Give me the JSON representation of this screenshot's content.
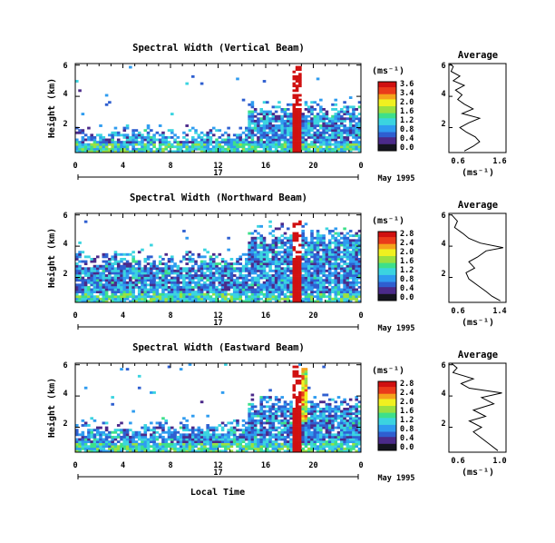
{
  "chart_data": [
    {
      "type": "heatmap",
      "title": "Spectral Width (Vertical Beam)",
      "ylabel": "Height (km)",
      "xticks": [
        "0",
        "4",
        "8",
        "12",
        "16",
        "20",
        "0"
      ],
      "yticks": [
        "2",
        "4",
        "6"
      ],
      "xlim": [
        0,
        24
      ],
      "ylim": [
        0.4,
        6.1
      ],
      "date_label": "17",
      "date_right": "May 1995",
      "colorbar": {
        "unit": "(ms⁻¹)",
        "ticks": [
          "3.6",
          "3.4",
          "2.0",
          "1.6",
          "1.2",
          "0.8",
          "0.4",
          "0.0"
        ]
      },
      "average": {
        "title": "Average",
        "xticks": [
          "0.6",
          "1.6"
        ],
        "xlim": [
          0.4,
          1.7
        ],
        "xlabel": "(ms⁻¹)",
        "yticks": [
          "2",
          "4",
          "6"
        ],
        "profile": [
          [
            0.75,
            0.5
          ],
          [
            0.95,
            0.8
          ],
          [
            1.1,
            1.1
          ],
          [
            1.0,
            1.4
          ],
          [
            0.8,
            1.7
          ],
          [
            0.65,
            2.0
          ],
          [
            0.85,
            2.3
          ],
          [
            1.1,
            2.6
          ],
          [
            0.7,
            2.9
          ],
          [
            0.95,
            3.2
          ],
          [
            0.75,
            3.5
          ],
          [
            0.6,
            3.8
          ],
          [
            0.7,
            4.1
          ],
          [
            0.55,
            4.4
          ],
          [
            0.75,
            4.7
          ],
          [
            0.5,
            5.0
          ],
          [
            0.65,
            5.3
          ],
          [
            0.45,
            5.6
          ],
          [
            0.5,
            5.9
          ],
          [
            0.42,
            6.1
          ]
        ]
      }
    },
    {
      "type": "heatmap",
      "title": "Spectral Width (Northward Beam)",
      "ylabel": "Height (km)",
      "xticks": [
        "0",
        "4",
        "8",
        "12",
        "16",
        "20",
        "0"
      ],
      "yticks": [
        "2",
        "4",
        "6"
      ],
      "xlim": [
        0,
        24
      ],
      "ylim": [
        0.4,
        6.1
      ],
      "date_label": "17",
      "date_right": "May 1995",
      "colorbar": {
        "unit": "(ms⁻¹)",
        "ticks": [
          "2.8",
          "2.4",
          "2.0",
          "1.6",
          "1.2",
          "0.8",
          "0.4",
          "0.0"
        ]
      },
      "average": {
        "title": "Average",
        "xticks": [
          "0.6",
          "1.4"
        ],
        "xlim": [
          0.45,
          1.45
        ],
        "xlabel": "(ms⁻¹)",
        "yticks": [
          "2",
          "4",
          "6"
        ],
        "profile": [
          [
            1.35,
            0.5
          ],
          [
            1.2,
            0.8
          ],
          [
            1.1,
            1.1
          ],
          [
            0.95,
            1.5
          ],
          [
            0.8,
            1.9
          ],
          [
            0.75,
            2.3
          ],
          [
            0.9,
            2.6
          ],
          [
            0.8,
            3.0
          ],
          [
            0.95,
            3.3
          ],
          [
            1.1,
            3.7
          ],
          [
            1.4,
            3.9
          ],
          [
            1.0,
            4.2
          ],
          [
            0.8,
            4.5
          ],
          [
            0.7,
            4.8
          ],
          [
            0.55,
            5.2
          ],
          [
            0.6,
            5.6
          ],
          [
            0.5,
            6.0
          ]
        ]
      }
    },
    {
      "type": "heatmap",
      "title": "Spectral Width (Eastward Beam)",
      "ylabel": "Height (km)",
      "xticks": [
        "0",
        "4",
        "8",
        "12",
        "16",
        "20",
        "0"
      ],
      "yticks": [
        "2",
        "4",
        "6"
      ],
      "xlim": [
        0,
        24
      ],
      "ylim": [
        0.4,
        6.1
      ],
      "date_label": "17",
      "date_right": "May 1995",
      "xlabel": "Local Time",
      "colorbar": {
        "unit": "(ms⁻¹)",
        "ticks": [
          "2.8",
          "2.4",
          "2.0",
          "1.6",
          "1.2",
          "0.8",
          "0.4",
          "0.0"
        ]
      },
      "average": {
        "title": "Average",
        "xticks": [
          "0.6",
          "1.0"
        ],
        "xlim": [
          0.45,
          1.15
        ],
        "xlabel": "(ms⁻¹)",
        "yticks": [
          "2",
          "4",
          "6"
        ],
        "profile": [
          [
            1.05,
            0.5
          ],
          [
            0.95,
            0.9
          ],
          [
            0.85,
            1.3
          ],
          [
            0.75,
            1.7
          ],
          [
            0.85,
            2.0
          ],
          [
            0.7,
            2.4
          ],
          [
            0.9,
            2.7
          ],
          [
            0.75,
            3.1
          ],
          [
            1.0,
            3.5
          ],
          [
            0.85,
            3.9
          ],
          [
            1.1,
            4.2
          ],
          [
            0.7,
            4.5
          ],
          [
            0.6,
            4.8
          ],
          [
            0.75,
            5.1
          ],
          [
            0.5,
            5.5
          ],
          [
            0.55,
            5.8
          ],
          [
            0.48,
            6.1
          ]
        ]
      }
    }
  ],
  "cmap": [
    "#151520",
    "#4b2a8a",
    "#2f5fd0",
    "#2f9cf0",
    "#3bd4e0",
    "#3ee08a",
    "#9be040",
    "#f0f020",
    "#f5a21c",
    "#ea3a1a",
    "#d01010"
  ]
}
